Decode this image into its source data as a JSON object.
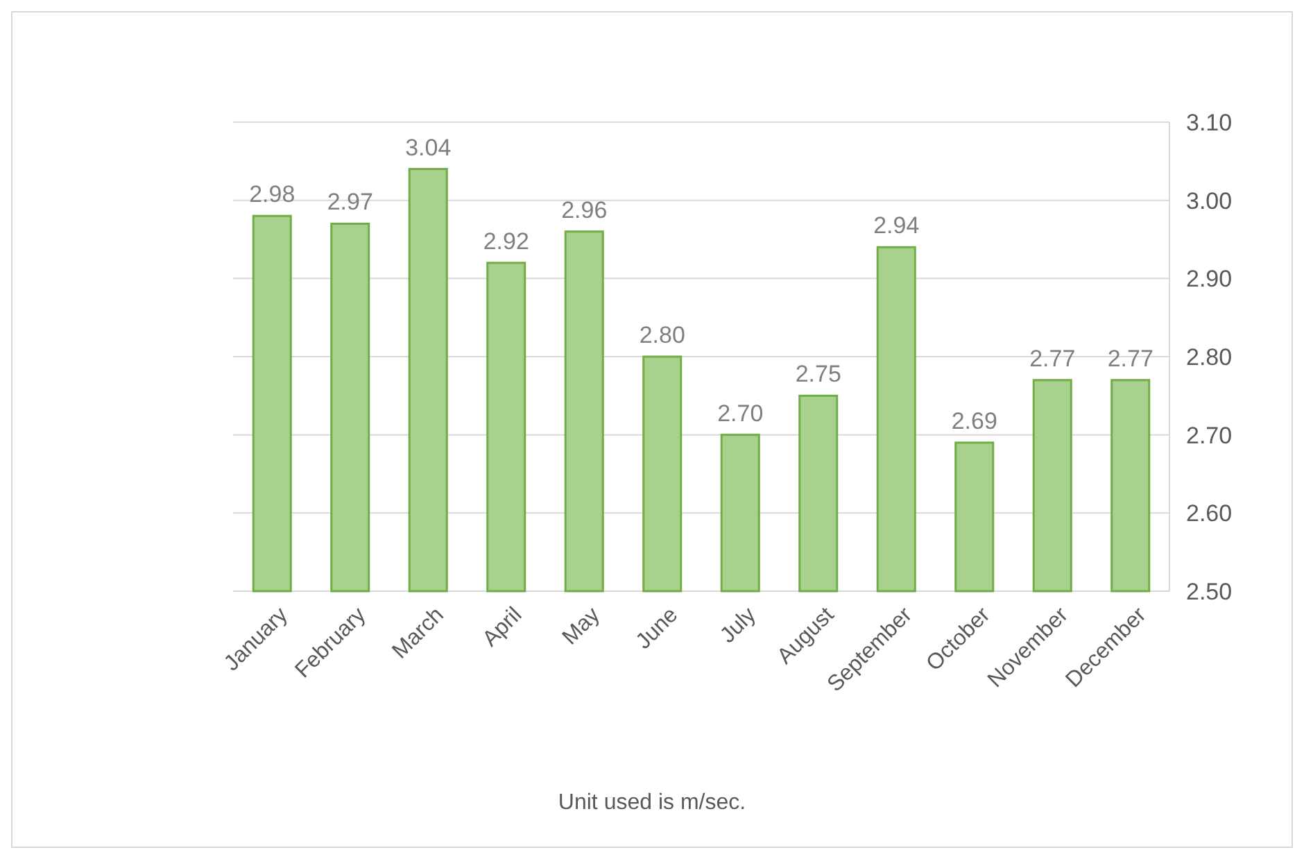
{
  "chart_data": {
    "type": "bar",
    "categories": [
      "January",
      "February",
      "March",
      "April",
      "May",
      "June",
      "July",
      "August",
      "September",
      "October",
      "November",
      "December"
    ],
    "values": [
      2.98,
      2.97,
      3.04,
      2.92,
      2.96,
      2.8,
      2.7,
      2.75,
      2.94,
      2.69,
      2.77,
      2.77
    ],
    "color": "#a9d18e",
    "ylim": [
      2.5,
      3.1
    ],
    "yticks": [
      {
        "value": 2.5,
        "label": "2.50"
      },
      {
        "value": 2.6,
        "label": "2.60"
      },
      {
        "value": 2.7,
        "label": "2.70"
      },
      {
        "value": 2.8,
        "label": "2.80"
      },
      {
        "value": 2.9,
        "label": "2.90"
      },
      {
        "value": 3.0,
        "label": "3.00"
      },
      {
        "value": 3.1,
        "label": "3.10"
      }
    ],
    "grid": true,
    "value_labels": [
      "2.98",
      "2.97",
      "3.04",
      "2.92",
      "2.96",
      "2.80",
      "2.70",
      "2.75",
      "2.94",
      "2.69",
      "2.77",
      "2.77"
    ],
    "annotations": [
      "Unit used is m/sec."
    ]
  }
}
